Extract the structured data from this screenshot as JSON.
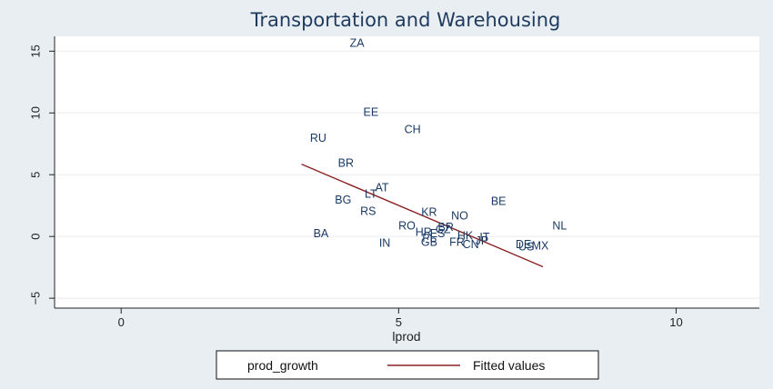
{
  "chart_data": {
    "type": "scatter",
    "title": "Transportation and Warehousing",
    "xlabel": "lprod",
    "ylabel": "",
    "xlim": [
      -1.2,
      11.5
    ],
    "ylim": [
      -5.8,
      16.2
    ],
    "xticks": [
      0,
      5,
      10
    ],
    "yticks": [
      -5,
      0,
      5,
      10,
      15
    ],
    "xtick_labels": [
      "0",
      "5",
      "10"
    ],
    "ytick_labels": [
      "−5",
      "0",
      "5",
      "10",
      "15"
    ],
    "grid": true,
    "legend_position": "bottom",
    "series": [
      {
        "name": "prod_growth",
        "type": "scatter-labels",
        "color": "#1a3a66",
        "points": [
          {
            "label": "ZA",
            "x": 4.25,
            "y": 15.6
          },
          {
            "label": "EE",
            "x": 4.5,
            "y": 10.0
          },
          {
            "label": "CH",
            "x": 5.25,
            "y": 8.6
          },
          {
            "label": "RU",
            "x": 3.55,
            "y": 7.9
          },
          {
            "label": "BR",
            "x": 4.05,
            "y": 5.9
          },
          {
            "label": "AT",
            "x": 4.7,
            "y": 3.9
          },
          {
            "label": "LT",
            "x": 4.5,
            "y": 3.4
          },
          {
            "label": "BG",
            "x": 4.0,
            "y": 2.9
          },
          {
            "label": "BE",
            "x": 6.8,
            "y": 2.8
          },
          {
            "label": "RS",
            "x": 4.45,
            "y": 2.0
          },
          {
            "label": "KR",
            "x": 5.55,
            "y": 1.9
          },
          {
            "label": "NO",
            "x": 6.1,
            "y": 1.6
          },
          {
            "label": "RO",
            "x": 5.15,
            "y": 0.8
          },
          {
            "label": "NL",
            "x": 7.9,
            "y": 0.8
          },
          {
            "label": "BR",
            "x": 5.85,
            "y": 0.7
          },
          {
            "label": "CZ",
            "x": 5.8,
            "y": 0.5
          },
          {
            "label": "HR",
            "x": 5.45,
            "y": 0.3
          },
          {
            "label": "ES",
            "x": 5.7,
            "y": 0.2
          },
          {
            "label": "BA",
            "x": 3.6,
            "y": 0.2
          },
          {
            "label": "HK",
            "x": 6.2,
            "y": 0.0
          },
          {
            "label": "PL",
            "x": 5.55,
            "y": -0.2
          },
          {
            "label": "IT",
            "x": 6.55,
            "y": -0.1
          },
          {
            "label": "GB",
            "x": 5.55,
            "y": -0.5
          },
          {
            "label": "FR",
            "x": 6.05,
            "y": -0.5
          },
          {
            "label": "JP",
            "x": 6.5,
            "y": -0.4
          },
          {
            "label": "IN",
            "x": 4.75,
            "y": -0.6
          },
          {
            "label": "CN",
            "x": 6.3,
            "y": -0.7
          },
          {
            "label": "DE",
            "x": 7.25,
            "y": -0.7
          },
          {
            "label": "US",
            "x": 7.3,
            "y": -0.9
          },
          {
            "label": "MX",
            "x": 7.55,
            "y": -0.8
          }
        ]
      },
      {
        "name": "Fitted values",
        "type": "line",
        "color": "#8b2323",
        "x": [
          3.25,
          7.6
        ],
        "y": [
          5.85,
          -2.45
        ]
      }
    ]
  }
}
